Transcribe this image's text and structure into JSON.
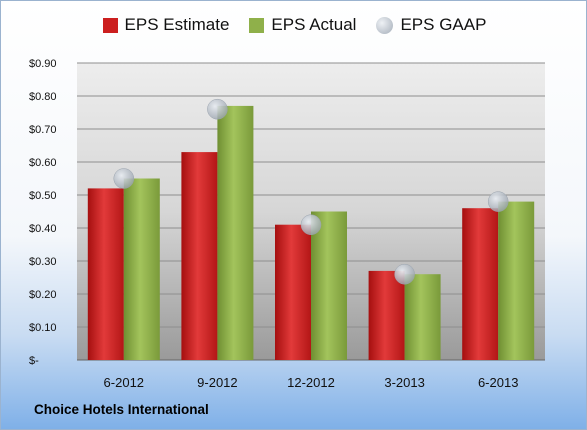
{
  "chart_data": {
    "type": "bar",
    "categories": [
      "6-2012",
      "9-2012",
      "12-2012",
      "3-2013",
      "6-2013"
    ],
    "series": [
      {
        "name": "EPS Estimate",
        "values": [
          0.52,
          0.63,
          0.41,
          0.27,
          0.46
        ],
        "color": "#cc1f1f",
        "style": "bar"
      },
      {
        "name": "EPS Actual",
        "values": [
          0.55,
          0.77,
          0.45,
          0.26,
          0.48
        ],
        "color": "#8fb04a",
        "style": "bar"
      },
      {
        "name": "EPS GAAP",
        "values": [
          0.55,
          0.76,
          0.41,
          0.26,
          0.48
        ],
        "color": "#b4bcc6",
        "style": "marker"
      }
    ],
    "ylim": [
      0,
      0.9
    ],
    "yticks": [
      {
        "value": 0,
        "label": "$-"
      },
      {
        "value": 0.1,
        "label": "$0.10"
      },
      {
        "value": 0.2,
        "label": "$0.20"
      },
      {
        "value": 0.3,
        "label": "$0.30"
      },
      {
        "value": 0.4,
        "label": "$0.40"
      },
      {
        "value": 0.5,
        "label": "$0.50"
      },
      {
        "value": 0.6,
        "label": "$0.60"
      },
      {
        "value": 0.7,
        "label": "$0.70"
      },
      {
        "value": 0.8,
        "label": "$0.80"
      },
      {
        "value": 0.9,
        "label": "$0.90"
      }
    ],
    "grid": true,
    "legend_position": "top-center",
    "xlabel": "",
    "ylabel": ""
  },
  "footer": {
    "company": "Choice Hotels International"
  }
}
